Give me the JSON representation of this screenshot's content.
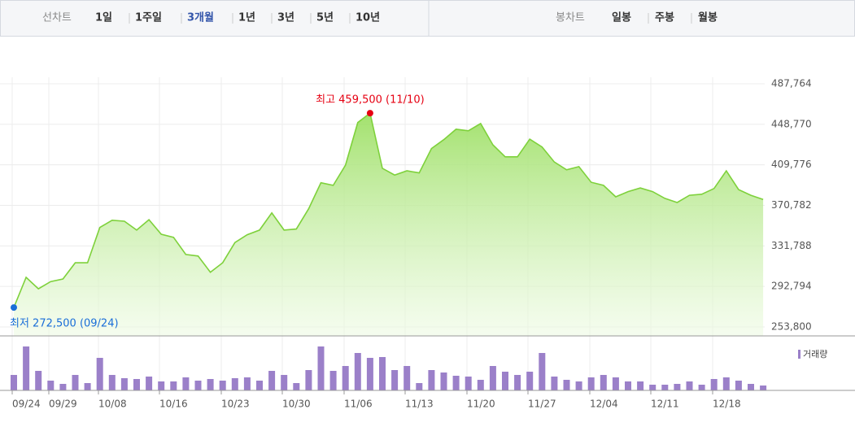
{
  "toolbar": {
    "line_label": "선차트",
    "periods": [
      "1일",
      "1주일",
      "3개월",
      "1년",
      "3년",
      "5년",
      "10년"
    ],
    "selected": 2,
    "candle_label": "봉차트",
    "candle_periods": [
      "일봉",
      "주봉",
      "월봉"
    ]
  },
  "chart_data": [
    {
      "type": "line",
      "color": "#7ed13b",
      "grid": true,
      "values": [
        272500,
        301500,
        290500,
        297500,
        300000,
        315500,
        315500,
        349500,
        356500,
        355500,
        347000,
        357000,
        343000,
        340000,
        323500,
        322000,
        306500,
        315500,
        335000,
        342500,
        347000,
        363500,
        347000,
        348000,
        367500,
        392500,
        390000,
        409500,
        450500,
        459500,
        406500,
        400000,
        404000,
        402000,
        425500,
        434000,
        444000,
        442500,
        449500,
        429000,
        417500,
        417500,
        434500,
        427000,
        412500,
        405000,
        408000,
        393000,
        390000,
        379000,
        384000,
        387500,
        384000,
        377500,
        373500,
        380500,
        381500,
        387000,
        404000,
        386000,
        380500,
        376500
      ],
      "ylim": [
        253800,
        487764
      ],
      "yticks": [
        {
          "value": 253800,
          "label": "253,800"
        },
        {
          "value": 292794,
          "label": "292,794"
        },
        {
          "value": 331788,
          "label": "331,788"
        },
        {
          "value": 370782,
          "label": "370,782"
        },
        {
          "value": 409776,
          "label": "409,776"
        },
        {
          "value": 448770,
          "label": "448,770"
        },
        {
          "value": 487764,
          "label": "487,764"
        }
      ],
      "annotations": [
        {
          "text": "최고 459,500 (11/10)",
          "index": 29,
          "color": "#e60012"
        },
        {
          "text": "최저 272,500 (09/24)",
          "index": 0,
          "color": "#1a6ed8"
        }
      ]
    },
    {
      "type": "bar",
      "categories": [
        "09/24",
        null,
        null,
        "09/29",
        null,
        null,
        null,
        "10/08",
        null,
        null,
        null,
        null,
        "10/16",
        null,
        null,
        null,
        null,
        "10/23",
        null,
        null,
        null,
        null,
        "10/30",
        null,
        null,
        null,
        null,
        "11/06",
        null,
        null,
        null,
        null,
        "11/13",
        null,
        null,
        null,
        null,
        "11/20",
        null,
        null,
        null,
        null,
        "11/27",
        null,
        null,
        null,
        null,
        "12/04",
        null,
        null,
        null,
        null,
        "12/11",
        null,
        null,
        null,
        null,
        "12/18",
        null,
        null,
        null,
        null
      ],
      "series": [
        {
          "name": "거래량",
          "color": "#9b80c9",
          "values": [
            19,
            54,
            24,
            12,
            8,
            19,
            9,
            40,
            19,
            15,
            14,
            17,
            11,
            11,
            16,
            12,
            14,
            12,
            15,
            16,
            12,
            24,
            19,
            9,
            25,
            54,
            24,
            30,
            46,
            40,
            41,
            25,
            30,
            9,
            25,
            22,
            18,
            17,
            13,
            30,
            23,
            19,
            23,
            46,
            17,
            13,
            11,
            16,
            19,
            16,
            11,
            11,
            7,
            7,
            8,
            11,
            7,
            14,
            16,
            12,
            8,
            6
          ]
        }
      ]
    }
  ]
}
